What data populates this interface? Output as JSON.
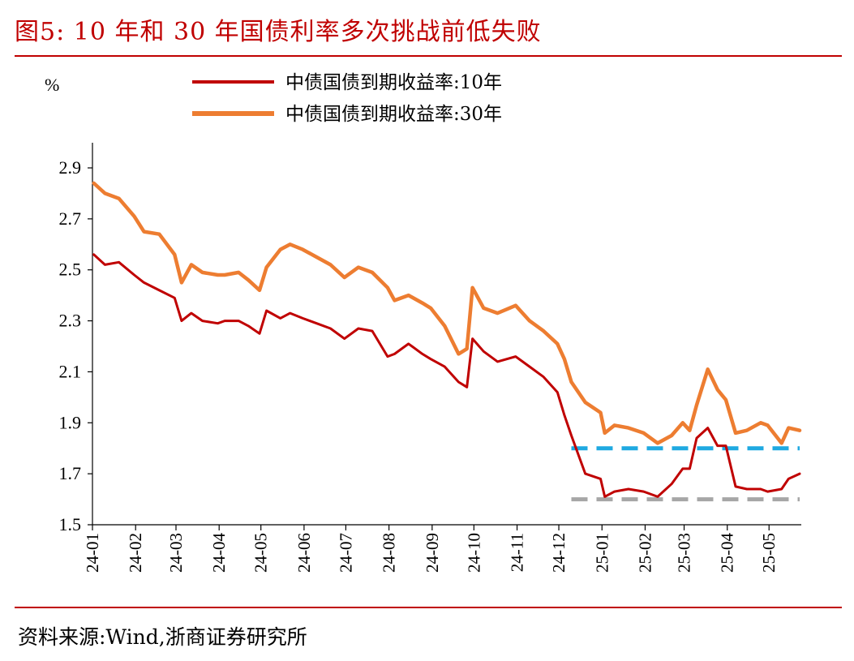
{
  "figure": {
    "title": "图5:   10 年和 30 年国债利率多次挑战前低失败",
    "source": "资料来源:Wind,浙商证券研究所"
  },
  "colors": {
    "title": "#c00000",
    "series_10y": "#c00000",
    "series_30y": "#ed7d31",
    "ref_1_8": "#1fa9e1",
    "ref_1_6": "#a6a6a6"
  },
  "chart_data": {
    "type": "line",
    "unit": "%",
    "ylim": [
      1.5,
      3.0
    ],
    "yticks": [
      "2.9",
      "2.7",
      "2.5",
      "2.3",
      "2.1",
      "1.9",
      "1.7",
      "1.5"
    ],
    "xticks": [
      "24-01",
      "24-02",
      "24-03",
      "24-04",
      "24-05",
      "24-06",
      "24-07",
      "24-08",
      "24-09",
      "24-10",
      "24-11",
      "24-12",
      "25-01",
      "25-02",
      "25-03",
      "25-04",
      "25-05"
    ],
    "legend_position": "top",
    "grid": false,
    "series": [
      {
        "name": "中债国债到期收益率:10年",
        "points": [
          [
            "2024-01-02",
            2.56
          ],
          [
            "2024-01-10",
            2.52
          ],
          [
            "2024-01-20",
            2.53
          ],
          [
            "2024-01-31",
            2.48
          ],
          [
            "2024-02-07",
            2.45
          ],
          [
            "2024-02-18",
            2.42
          ],
          [
            "2024-02-29",
            2.39
          ],
          [
            "2024-03-05",
            2.3
          ],
          [
            "2024-03-12",
            2.33
          ],
          [
            "2024-03-20",
            2.3
          ],
          [
            "2024-03-31",
            2.29
          ],
          [
            "2024-04-05",
            2.3
          ],
          [
            "2024-04-15",
            2.3
          ],
          [
            "2024-04-22",
            2.28
          ],
          [
            "2024-04-30",
            2.25
          ],
          [
            "2024-05-05",
            2.34
          ],
          [
            "2024-05-15",
            2.31
          ],
          [
            "2024-05-22",
            2.33
          ],
          [
            "2024-05-31",
            2.31
          ],
          [
            "2024-06-10",
            2.29
          ],
          [
            "2024-06-20",
            2.27
          ],
          [
            "2024-06-30",
            2.23
          ],
          [
            "2024-07-10",
            2.27
          ],
          [
            "2024-07-20",
            2.26
          ],
          [
            "2024-07-31",
            2.16
          ],
          [
            "2024-08-05",
            2.17
          ],
          [
            "2024-08-15",
            2.21
          ],
          [
            "2024-08-25",
            2.17
          ],
          [
            "2024-08-31",
            2.15
          ],
          [
            "2024-09-10",
            2.12
          ],
          [
            "2024-09-20",
            2.06
          ],
          [
            "2024-09-26",
            2.04
          ],
          [
            "2024-09-30",
            2.23
          ],
          [
            "2024-10-08",
            2.18
          ],
          [
            "2024-10-18",
            2.14
          ],
          [
            "2024-10-31",
            2.16
          ],
          [
            "2024-11-10",
            2.12
          ],
          [
            "2024-11-20",
            2.08
          ],
          [
            "2024-11-30",
            2.02
          ],
          [
            "2024-12-05",
            1.93
          ],
          [
            "2024-12-10",
            1.85
          ],
          [
            "2024-12-20",
            1.7
          ],
          [
            "2024-12-31",
            1.68
          ],
          [
            "2025-01-03",
            1.61
          ],
          [
            "2025-01-10",
            1.63
          ],
          [
            "2025-01-20",
            1.64
          ],
          [
            "2025-01-31",
            1.63
          ],
          [
            "2025-02-10",
            1.61
          ],
          [
            "2025-02-20",
            1.66
          ],
          [
            "2025-02-28",
            1.72
          ],
          [
            "2025-03-05",
            1.72
          ],
          [
            "2025-03-10",
            1.84
          ],
          [
            "2025-03-18",
            1.88
          ],
          [
            "2025-03-25",
            1.81
          ],
          [
            "2025-03-31",
            1.81
          ],
          [
            "2025-04-07",
            1.65
          ],
          [
            "2025-04-15",
            1.64
          ],
          [
            "2025-04-25",
            1.64
          ],
          [
            "2025-04-30",
            1.63
          ],
          [
            "2025-05-10",
            1.64
          ],
          [
            "2025-05-15",
            1.68
          ],
          [
            "2025-05-23",
            1.7
          ]
        ]
      },
      {
        "name": "中债国债到期收益率:30年",
        "points": [
          [
            "2024-01-02",
            2.84
          ],
          [
            "2024-01-10",
            2.8
          ],
          [
            "2024-01-20",
            2.78
          ],
          [
            "2024-01-31",
            2.71
          ],
          [
            "2024-02-07",
            2.65
          ],
          [
            "2024-02-18",
            2.64
          ],
          [
            "2024-02-29",
            2.56
          ],
          [
            "2024-03-05",
            2.45
          ],
          [
            "2024-03-12",
            2.52
          ],
          [
            "2024-03-20",
            2.49
          ],
          [
            "2024-03-31",
            2.48
          ],
          [
            "2024-04-05",
            2.48
          ],
          [
            "2024-04-15",
            2.49
          ],
          [
            "2024-04-22",
            2.46
          ],
          [
            "2024-04-30",
            2.42
          ],
          [
            "2024-05-05",
            2.51
          ],
          [
            "2024-05-15",
            2.58
          ],
          [
            "2024-05-22",
            2.6
          ],
          [
            "2024-05-31",
            2.58
          ],
          [
            "2024-06-10",
            2.55
          ],
          [
            "2024-06-20",
            2.52
          ],
          [
            "2024-06-30",
            2.47
          ],
          [
            "2024-07-10",
            2.51
          ],
          [
            "2024-07-20",
            2.49
          ],
          [
            "2024-07-31",
            2.43
          ],
          [
            "2024-08-05",
            2.38
          ],
          [
            "2024-08-15",
            2.4
          ],
          [
            "2024-08-25",
            2.37
          ],
          [
            "2024-08-31",
            2.35
          ],
          [
            "2024-09-10",
            2.28
          ],
          [
            "2024-09-20",
            2.17
          ],
          [
            "2024-09-26",
            2.19
          ],
          [
            "2024-09-30",
            2.43
          ],
          [
            "2024-10-08",
            2.35
          ],
          [
            "2024-10-18",
            2.33
          ],
          [
            "2024-10-31",
            2.36
          ],
          [
            "2024-11-10",
            2.3
          ],
          [
            "2024-11-20",
            2.26
          ],
          [
            "2024-11-30",
            2.21
          ],
          [
            "2024-12-05",
            2.15
          ],
          [
            "2024-12-10",
            2.06
          ],
          [
            "2024-12-20",
            1.98
          ],
          [
            "2024-12-31",
            1.94
          ],
          [
            "2025-01-03",
            1.86
          ],
          [
            "2025-01-10",
            1.89
          ],
          [
            "2025-01-20",
            1.88
          ],
          [
            "2025-01-31",
            1.86
          ],
          [
            "2025-02-10",
            1.82
          ],
          [
            "2025-02-20",
            1.85
          ],
          [
            "2025-02-28",
            1.9
          ],
          [
            "2025-03-05",
            1.87
          ],
          [
            "2025-03-10",
            1.97
          ],
          [
            "2025-03-18",
            2.11
          ],
          [
            "2025-03-25",
            2.03
          ],
          [
            "2025-03-31",
            1.99
          ],
          [
            "2025-04-07",
            1.86
          ],
          [
            "2025-04-15",
            1.87
          ],
          [
            "2025-04-25",
            1.9
          ],
          [
            "2025-04-30",
            1.89
          ],
          [
            "2025-05-10",
            1.82
          ],
          [
            "2025-05-15",
            1.88
          ],
          [
            "2025-05-23",
            1.87
          ]
        ]
      }
    ],
    "reference_lines": [
      {
        "y": 1.8,
        "from": "2024-12-10",
        "to": "2025-05-23",
        "style": "dashed",
        "color_key": "ref_1_8"
      },
      {
        "y": 1.6,
        "from": "2024-12-10",
        "to": "2025-05-23",
        "style": "dashed",
        "color_key": "ref_1_6"
      }
    ]
  }
}
